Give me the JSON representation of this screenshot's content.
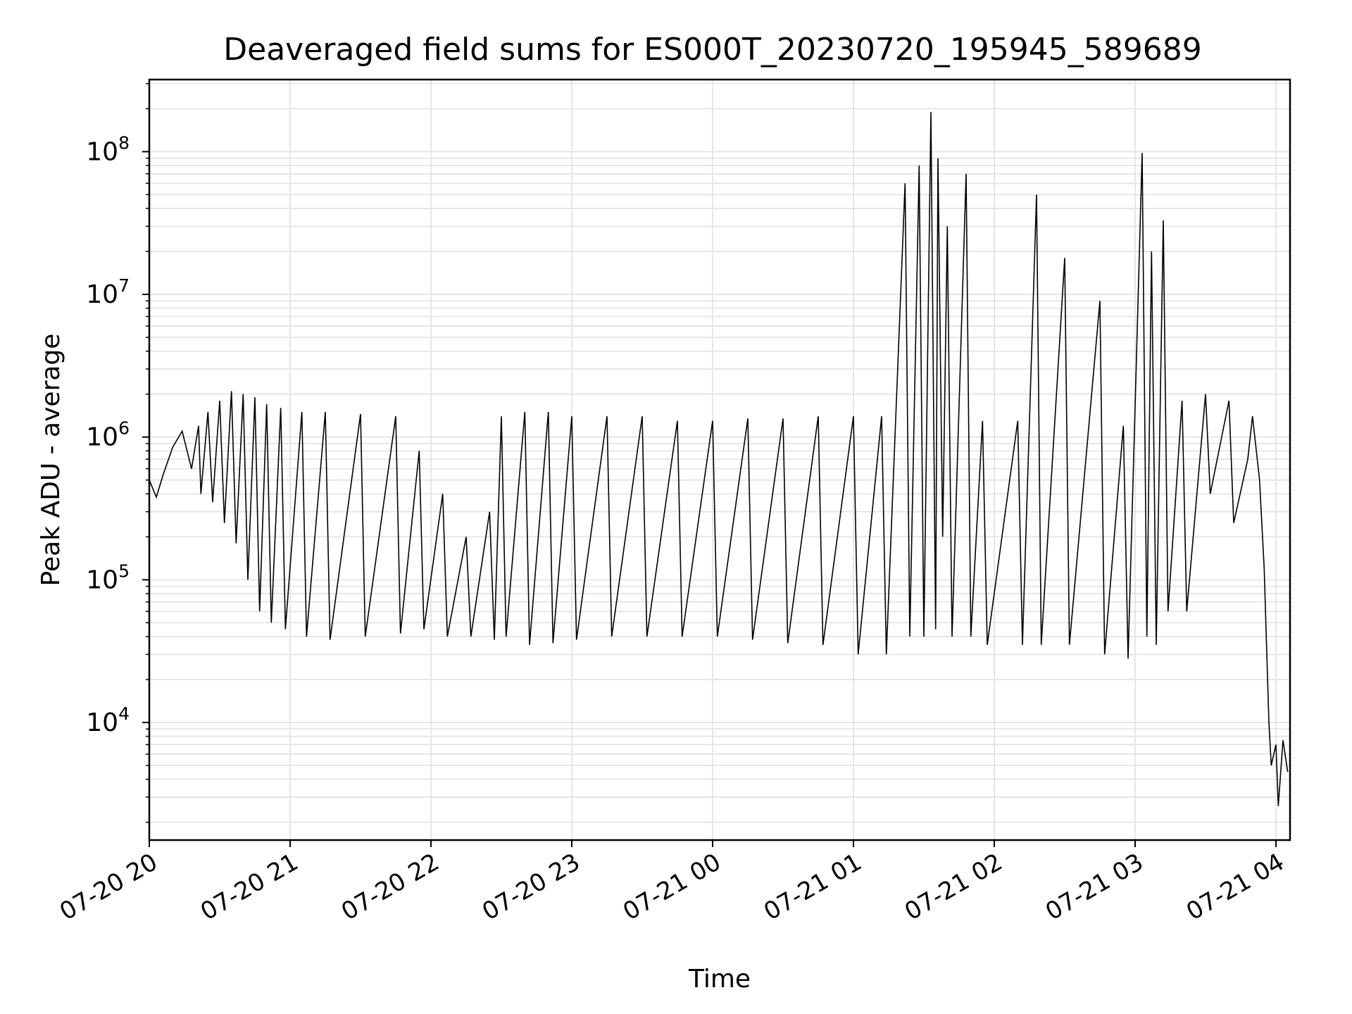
{
  "chart_data": {
    "type": "line",
    "title": "Deaveraged field sums for ES000T_20230720_195945_589689",
    "xlabel": "Time",
    "ylabel": "Peak ADU - average",
    "yscale": "log",
    "ylim": [
      1500,
      320000000
    ],
    "xlim": [
      "2023-07-20 20:00",
      "2023-07-21 04:06"
    ],
    "grid": true,
    "x_ticks": [
      {
        "time": "2023-07-20 20:00",
        "label": "07-20 20"
      },
      {
        "time": "2023-07-20 21:00",
        "label": "07-20 21"
      },
      {
        "time": "2023-07-20 22:00",
        "label": "07-20 22"
      },
      {
        "time": "2023-07-20 23:00",
        "label": "07-20 23"
      },
      {
        "time": "2023-07-21 00:00",
        "label": "07-21 00"
      },
      {
        "time": "2023-07-21 01:00",
        "label": "07-21 01"
      },
      {
        "time": "2023-07-21 02:00",
        "label": "07-21 02"
      },
      {
        "time": "2023-07-21 03:00",
        "label": "07-21 03"
      },
      {
        "time": "2023-07-21 04:00",
        "label": "07-21 04"
      }
    ],
    "y_ticks": [
      {
        "value": 10000,
        "base": "10",
        "exp": "4"
      },
      {
        "value": 100000,
        "base": "10",
        "exp": "5"
      },
      {
        "value": 1000000,
        "base": "10",
        "exp": "6"
      },
      {
        "value": 10000000,
        "base": "10",
        "exp": "7"
      },
      {
        "value": 100000000,
        "base": "10",
        "exp": "8"
      }
    ],
    "colors": {
      "line": "#000000",
      "grid": "#e6e6e6"
    },
    "series": [
      {
        "values_note": "approximate envelope trace",
        "points": [
          [
            "2023-07-20 20:00",
            500000
          ],
          [
            "2023-07-20 20:03",
            380000
          ],
          [
            "2023-07-20 20:06",
            550000
          ],
          [
            "2023-07-20 20:10",
            850000
          ],
          [
            "2023-07-20 20:14",
            1100000
          ],
          [
            "2023-07-20 20:18",
            600000
          ],
          [
            "2023-07-20 20:21",
            1200000
          ],
          [
            "2023-07-20 20:22",
            400000
          ],
          [
            "2023-07-20 20:25",
            1500000
          ],
          [
            "2023-07-20 20:27",
            350000
          ],
          [
            "2023-07-20 20:30",
            1800000
          ],
          [
            "2023-07-20 20:32",
            250000
          ],
          [
            "2023-07-20 20:35",
            2100000
          ],
          [
            "2023-07-20 20:37",
            180000
          ],
          [
            "2023-07-20 20:40",
            2000000
          ],
          [
            "2023-07-20 20:42",
            100000
          ],
          [
            "2023-07-20 20:45",
            1900000
          ],
          [
            "2023-07-20 20:47",
            60000
          ],
          [
            "2023-07-20 20:50",
            1700000
          ],
          [
            "2023-07-20 20:52",
            50000
          ],
          [
            "2023-07-20 20:56",
            1600000
          ],
          [
            "2023-07-20 20:58",
            45000
          ],
          [
            "2023-07-20 21:05",
            1500000
          ],
          [
            "2023-07-20 21:07",
            40000
          ],
          [
            "2023-07-20 21:15",
            1500000
          ],
          [
            "2023-07-20 21:17",
            38000
          ],
          [
            "2023-07-20 21:30",
            1450000
          ],
          [
            "2023-07-20 21:32",
            40000
          ],
          [
            "2023-07-20 21:45",
            1400000
          ],
          [
            "2023-07-20 21:47",
            42000
          ],
          [
            "2023-07-20 21:55",
            800000
          ],
          [
            "2023-07-20 21:57",
            45000
          ],
          [
            "2023-07-20 22:05",
            400000
          ],
          [
            "2023-07-20 22:07",
            40000
          ],
          [
            "2023-07-20 22:15",
            200000
          ],
          [
            "2023-07-20 22:17",
            40000
          ],
          [
            "2023-07-20 22:25",
            300000
          ],
          [
            "2023-07-20 22:27",
            38000
          ],
          [
            "2023-07-20 22:30",
            1400000
          ],
          [
            "2023-07-20 22:32",
            40000
          ],
          [
            "2023-07-20 22:40",
            1500000
          ],
          [
            "2023-07-20 22:42",
            35000
          ],
          [
            "2023-07-20 22:50",
            1500000
          ],
          [
            "2023-07-20 22:52",
            36000
          ],
          [
            "2023-07-20 23:00",
            1400000
          ],
          [
            "2023-07-20 23:02",
            38000
          ],
          [
            "2023-07-20 23:15",
            1400000
          ],
          [
            "2023-07-20 23:17",
            40000
          ],
          [
            "2023-07-20 23:30",
            1400000
          ],
          [
            "2023-07-20 23:32",
            40000
          ],
          [
            "2023-07-20 23:45",
            1300000
          ],
          [
            "2023-07-20 23:47",
            40000
          ],
          [
            "2023-07-21 00:00",
            1300000
          ],
          [
            "2023-07-21 00:02",
            40000
          ],
          [
            "2023-07-21 00:15",
            1350000
          ],
          [
            "2023-07-21 00:17",
            38000
          ],
          [
            "2023-07-21 00:30",
            1350000
          ],
          [
            "2023-07-21 00:32",
            36000
          ],
          [
            "2023-07-21 00:45",
            1400000
          ],
          [
            "2023-07-21 00:47",
            35000
          ],
          [
            "2023-07-21 01:00",
            1400000
          ],
          [
            "2023-07-21 01:02",
            30000
          ],
          [
            "2023-07-21 01:12",
            1400000
          ],
          [
            "2023-07-21 01:14",
            30000
          ],
          [
            "2023-07-21 01:22",
            60000000
          ],
          [
            "2023-07-21 01:24",
            40000
          ],
          [
            "2023-07-21 01:28",
            80000000
          ],
          [
            "2023-07-21 01:30",
            40000
          ],
          [
            "2023-07-21 01:33",
            190000000
          ],
          [
            "2023-07-21 01:35",
            45000
          ],
          [
            "2023-07-21 01:36",
            90000000
          ],
          [
            "2023-07-21 01:38",
            200000
          ],
          [
            "2023-07-21 01:40",
            30000000
          ],
          [
            "2023-07-21 01:42",
            40000
          ],
          [
            "2023-07-21 01:48",
            70000000
          ],
          [
            "2023-07-21 01:50",
            40000
          ],
          [
            "2023-07-21 01:55",
            1300000
          ],
          [
            "2023-07-21 01:57",
            35000
          ],
          [
            "2023-07-21 02:10",
            1300000
          ],
          [
            "2023-07-21 02:12",
            35000
          ],
          [
            "2023-07-21 02:18",
            50000000
          ],
          [
            "2023-07-21 02:20",
            35000
          ],
          [
            "2023-07-21 02:30",
            18000000
          ],
          [
            "2023-07-21 02:32",
            35000
          ],
          [
            "2023-07-21 02:45",
            9000000
          ],
          [
            "2023-07-21 02:47",
            30000
          ],
          [
            "2023-07-21 02:55",
            1200000
          ],
          [
            "2023-07-21 02:57",
            28000
          ],
          [
            "2023-07-21 03:03",
            98000000
          ],
          [
            "2023-07-21 03:05",
            40000
          ],
          [
            "2023-07-21 03:07",
            20000000
          ],
          [
            "2023-07-21 03:09",
            35000
          ],
          [
            "2023-07-21 03:12",
            33000000
          ],
          [
            "2023-07-21 03:14",
            60000
          ],
          [
            "2023-07-21 03:20",
            1800000
          ],
          [
            "2023-07-21 03:22",
            60000
          ],
          [
            "2023-07-21 03:30",
            2000000
          ],
          [
            "2023-07-21 03:32",
            400000
          ],
          [
            "2023-07-21 03:40",
            1800000
          ],
          [
            "2023-07-21 03:42",
            250000
          ],
          [
            "2023-07-21 03:48",
            700000
          ],
          [
            "2023-07-21 03:50",
            1400000
          ],
          [
            "2023-07-21 03:53",
            500000
          ],
          [
            "2023-07-21 03:55",
            120000
          ],
          [
            "2023-07-21 03:57",
            10000
          ],
          [
            "2023-07-21 03:58",
            5000
          ],
          [
            "2023-07-21 04:00",
            7000
          ],
          [
            "2023-07-21 04:01",
            2600
          ],
          [
            "2023-07-21 04:03",
            7500
          ],
          [
            "2023-07-21 04:05",
            4500
          ]
        ]
      }
    ]
  }
}
